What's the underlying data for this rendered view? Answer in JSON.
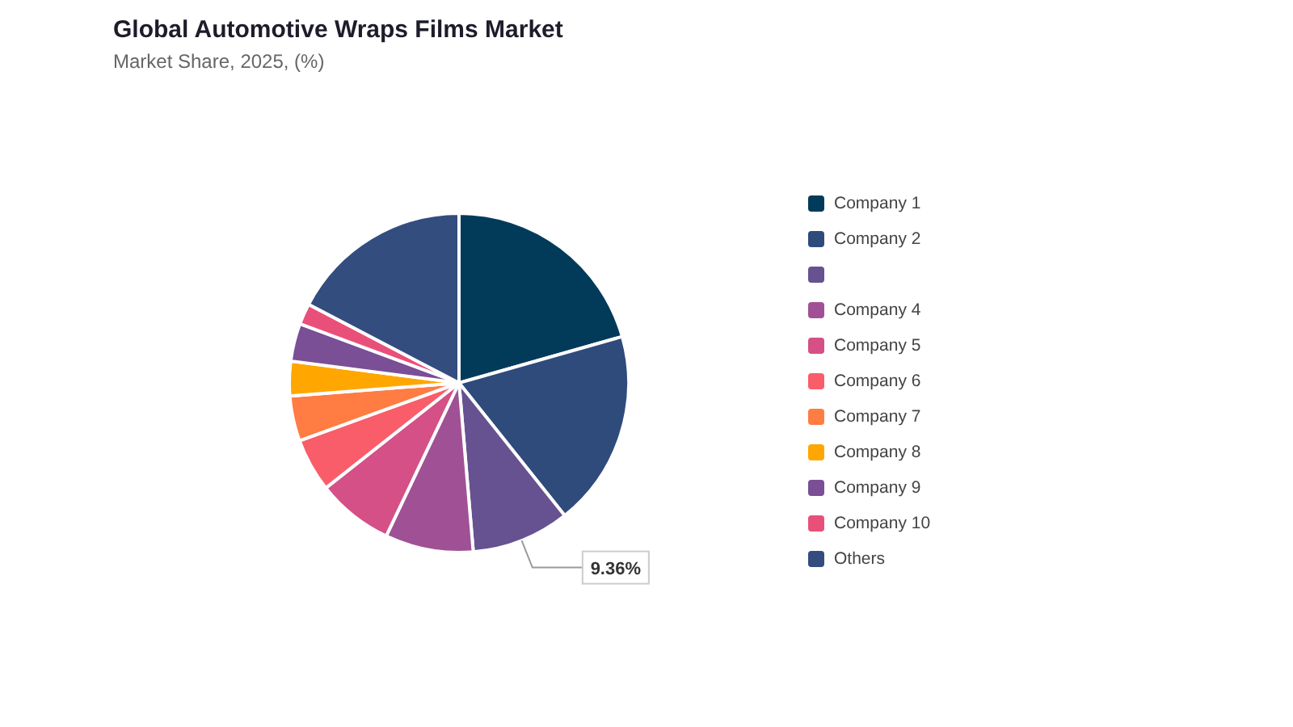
{
  "chart_data": {
    "type": "pie",
    "title": "Global Automotive Wraps Films Market",
    "subtitle": "Market Share, 2025, (%)",
    "categories": [
      "Company 1",
      "Company 2",
      null,
      "Company 4",
      "Company 5",
      "Company 6",
      "Company 7",
      "Company 8",
      "Company 9",
      "Company 10",
      "Others"
    ],
    "values": [
      20.6,
      18.7,
      9.36,
      8.4,
      7.3,
      5.1,
      4.3,
      3.3,
      3.6,
      2.0,
      17.34
    ],
    "colors": [
      "#023b5a",
      "#2f4b7c",
      "#665191",
      "#a05195",
      "#d45087",
      "#f95d6a",
      "#ff7c43",
      "#ffa600",
      "#7a4f96",
      "#e8507a",
      "#344d7f"
    ],
    "value_labels": [
      null,
      null,
      "9.36%",
      null,
      null,
      null,
      null,
      null,
      null,
      null,
      null
    ],
    "legend": "right"
  }
}
